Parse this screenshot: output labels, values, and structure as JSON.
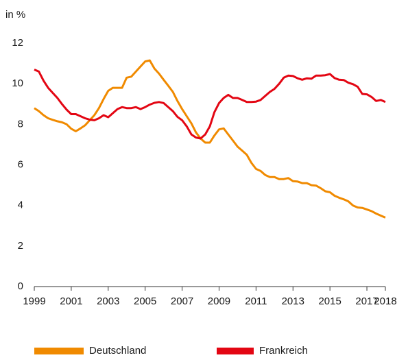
{
  "chart_data": {
    "type": "line",
    "y_label": "in %",
    "x": [
      1999,
      1999.25,
      1999.5,
      1999.75,
      2000,
      2000.25,
      2000.5,
      2000.75,
      2001,
      2001.25,
      2001.5,
      2001.75,
      2002,
      2002.25,
      2002.5,
      2002.75,
      2003,
      2003.25,
      2003.5,
      2003.75,
      2004,
      2004.25,
      2004.5,
      2004.75,
      2005,
      2005.25,
      2005.5,
      2005.75,
      2006,
      2006.25,
      2006.5,
      2006.75,
      2007,
      2007.25,
      2007.5,
      2007.75,
      2008,
      2008.25,
      2008.5,
      2008.75,
      2009,
      2009.25,
      2009.5,
      2009.75,
      2010,
      2010.25,
      2010.5,
      2010.75,
      2011,
      2011.25,
      2011.5,
      2011.75,
      2012,
      2012.25,
      2012.5,
      2012.75,
      2013,
      2013.25,
      2013.5,
      2013.75,
      2014,
      2014.25,
      2014.5,
      2014.75,
      2015,
      2015.25,
      2015.5,
      2015.75,
      2016,
      2016.25,
      2016.5,
      2016.75,
      2017,
      2017.25,
      2017.5,
      2017.75,
      2018
    ],
    "series": [
      {
        "name": "Deutschland",
        "color": "#f08a00",
        "values": [
          8.8,
          8.65,
          8.45,
          8.3,
          8.22,
          8.15,
          8.1,
          8.0,
          7.78,
          7.66,
          7.8,
          7.95,
          8.2,
          8.45,
          8.8,
          9.25,
          9.65,
          9.8,
          9.8,
          9.8,
          10.3,
          10.35,
          10.6,
          10.85,
          11.1,
          11.15,
          10.75,
          10.5,
          10.2,
          9.9,
          9.6,
          9.15,
          8.75,
          8.4,
          8.05,
          7.6,
          7.3,
          7.1,
          7.1,
          7.45,
          7.75,
          7.8,
          7.5,
          7.2,
          6.9,
          6.7,
          6.5,
          6.1,
          5.8,
          5.7,
          5.5,
          5.4,
          5.4,
          5.3,
          5.3,
          5.35,
          5.2,
          5.18,
          5.1,
          5.1,
          5.0,
          4.98,
          4.85,
          4.7,
          4.65,
          4.48,
          4.38,
          4.3,
          4.2,
          4.0,
          3.9,
          3.88,
          3.8,
          3.72,
          3.6,
          3.5,
          3.4
        ]
      },
      {
        "name": "Frankreich",
        "color": "#e30613",
        "values": [
          10.7,
          10.6,
          10.15,
          9.8,
          9.55,
          9.3,
          9.0,
          8.72,
          8.5,
          8.5,
          8.4,
          8.3,
          8.23,
          8.2,
          8.3,
          8.45,
          8.35,
          8.55,
          8.75,
          8.85,
          8.8,
          8.8,
          8.85,
          8.75,
          8.85,
          8.97,
          9.06,
          9.1,
          9.05,
          8.85,
          8.65,
          8.37,
          8.2,
          7.9,
          7.5,
          7.35,
          7.3,
          7.5,
          7.9,
          8.6,
          9.05,
          9.3,
          9.45,
          9.3,
          9.3,
          9.2,
          9.1,
          9.1,
          9.12,
          9.2,
          9.4,
          9.6,
          9.75,
          10.0,
          10.3,
          10.4,
          10.38,
          10.27,
          10.2,
          10.27,
          10.25,
          10.4,
          10.4,
          10.42,
          10.48,
          10.28,
          10.2,
          10.18,
          10.05,
          9.98,
          9.85,
          9.5,
          9.48,
          9.35,
          9.15,
          9.2,
          9.1
        ]
      }
    ],
    "xlim": [
      1999,
      2018
    ],
    "xticks": [
      1999,
      2001,
      2003,
      2005,
      2007,
      2009,
      2011,
      2013,
      2015,
      2017,
      2018
    ],
    "ylim": [
      0,
      12
    ],
    "yticks": [
      0,
      2,
      4,
      6,
      8,
      10,
      12
    ],
    "grid": false
  }
}
